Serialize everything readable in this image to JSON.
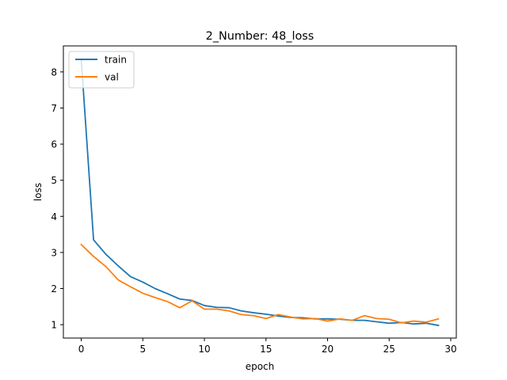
{
  "chart_data": {
    "type": "line",
    "title": "2_Number: 48_loss",
    "xlabel": "epoch",
    "ylabel": "loss",
    "xlim": [
      -1.45,
      30.45
    ],
    "ylim": [
      0.63,
      8.72
    ],
    "xticks": [
      0,
      5,
      10,
      15,
      20,
      25,
      30
    ],
    "yticks": [
      1,
      2,
      3,
      4,
      5,
      6,
      7,
      8
    ],
    "grid": false,
    "legend_position": "upper-left",
    "x": [
      0,
      1,
      2,
      3,
      4,
      5,
      6,
      7,
      8,
      9,
      10,
      11,
      12,
      13,
      14,
      15,
      16,
      17,
      18,
      19,
      20,
      21,
      22,
      23,
      24,
      25,
      26,
      27,
      28,
      29
    ],
    "series": [
      {
        "name": "train",
        "color": "#1f77b4",
        "values": [
          8.35,
          3.35,
          2.95,
          2.63,
          2.33,
          2.18,
          2.0,
          1.86,
          1.71,
          1.67,
          1.53,
          1.48,
          1.47,
          1.38,
          1.33,
          1.29,
          1.24,
          1.2,
          1.19,
          1.16,
          1.16,
          1.15,
          1.12,
          1.12,
          1.08,
          1.04,
          1.06,
          1.02,
          1.04,
          0.98
        ]
      },
      {
        "name": "val",
        "color": "#ff7f0e",
        "values": [
          3.22,
          2.89,
          2.61,
          2.24,
          2.05,
          1.87,
          1.75,
          1.64,
          1.47,
          1.66,
          1.43,
          1.43,
          1.38,
          1.28,
          1.25,
          1.17,
          1.28,
          1.21,
          1.16,
          1.17,
          1.1,
          1.16,
          1.12,
          1.25,
          1.17,
          1.15,
          1.05,
          1.1,
          1.07,
          1.16
        ]
      }
    ]
  }
}
